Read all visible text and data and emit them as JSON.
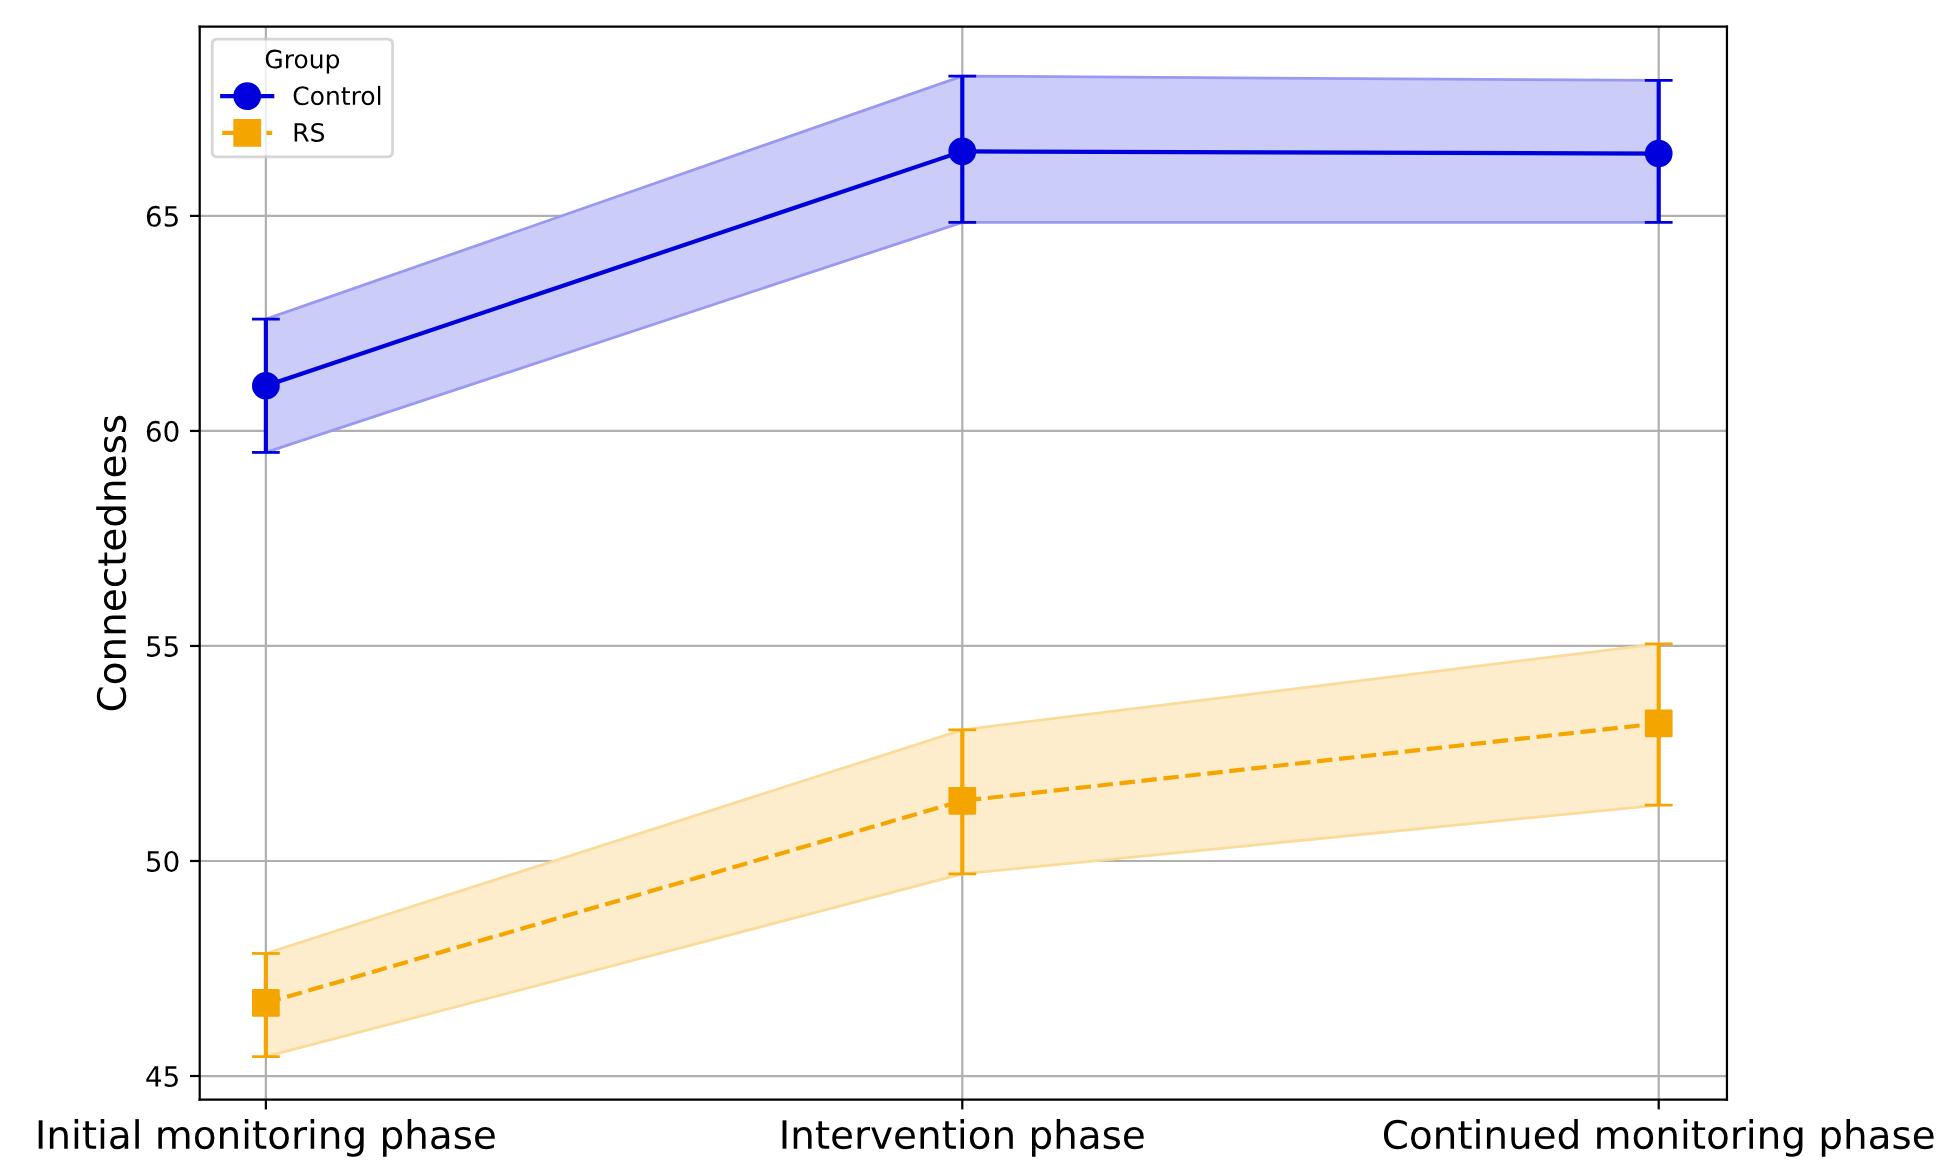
{
  "chart_data": {
    "type": "line",
    "ylabel": "Connectedness",
    "legend_title": "Group",
    "categories": [
      "Initial monitoring phase",
      "Intervention phase",
      "Continued monitoring phase"
    ],
    "series": [
      {
        "name": "Control",
        "color": "#0000dd",
        "values": [
          61.05,
          66.5,
          66.45
        ],
        "errors": [
          [
            59.5,
            62.6
          ],
          [
            64.85,
            68.25
          ],
          [
            64.85,
            68.15
          ]
        ],
        "lower": [
          59.5,
          64.85,
          64.85
        ],
        "upper": [
          62.6,
          68.25,
          68.15
        ],
        "marker": "circle",
        "line_style": "solid"
      },
      {
        "name": "RS",
        "color": "#f5a500",
        "values": [
          46.7,
          51.4,
          53.2
        ],
        "errors": [
          [
            45.45,
            47.85
          ],
          [
            49.7,
            53.05
          ],
          [
            51.3,
            55.05
          ]
        ],
        "lower": [
          45.45,
          49.7,
          51.3
        ],
        "upper": [
          47.85,
          53.05,
          55.05
        ],
        "marker": "square",
        "line_style": "dashed"
      }
    ],
    "ylim": [
      44.45,
      69.4
    ],
    "yticks": [
      45,
      50,
      55,
      60,
      65
    ],
    "grid": true,
    "legend": "top left"
  }
}
